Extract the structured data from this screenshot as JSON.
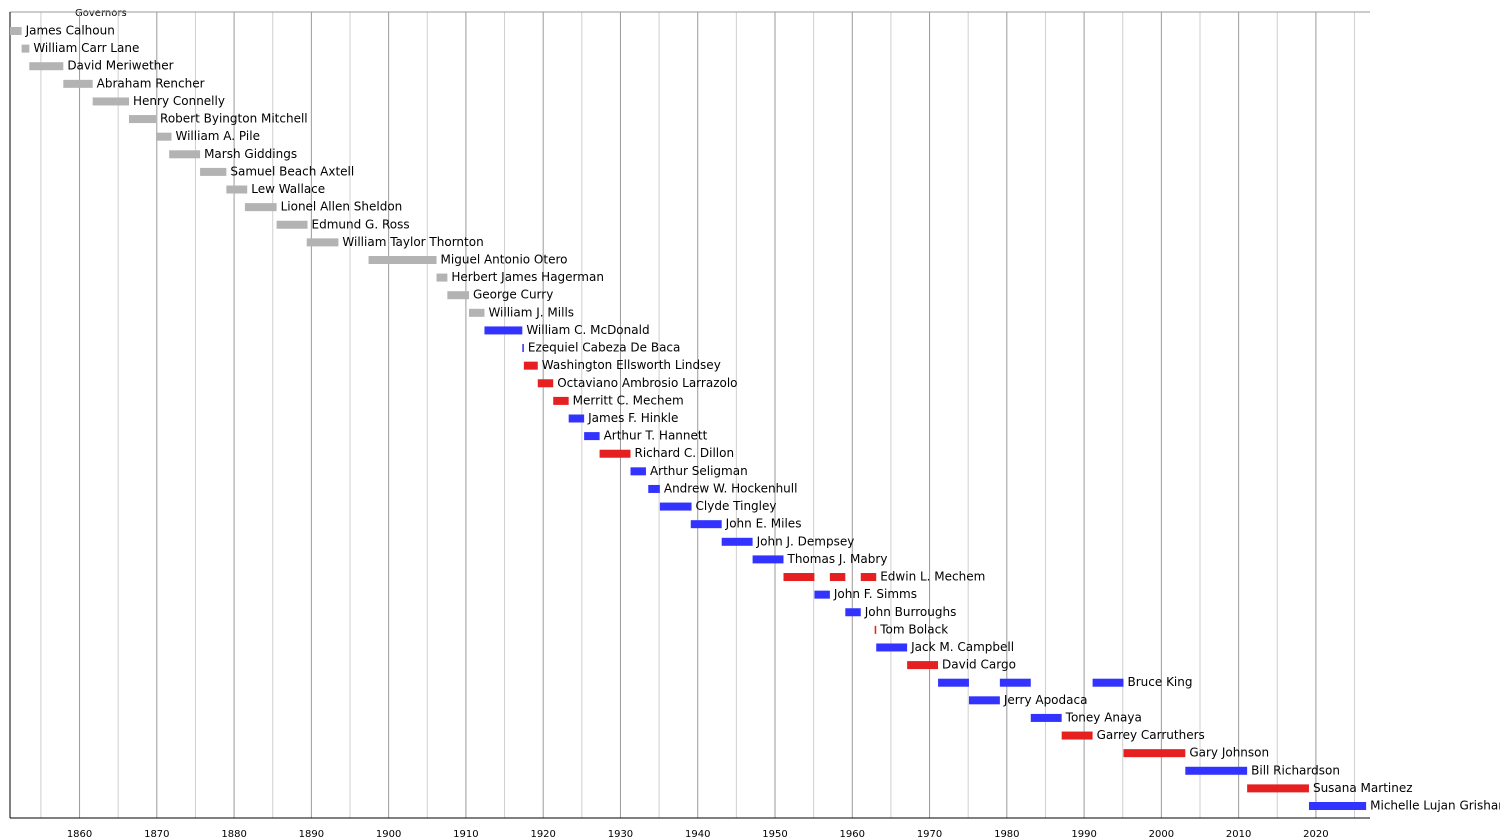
{
  "chart_data": {
    "type": "timeline",
    "title": "Governors",
    "xlim": [
      1851,
      2027
    ],
    "xticks": [
      1860,
      1870,
      1880,
      1890,
      1900,
      1910,
      1920,
      1930,
      1940,
      1950,
      1960,
      1970,
      1980,
      1990,
      2000,
      2010,
      2020
    ],
    "minor_xticks": [
      1855,
      1865,
      1875,
      1885,
      1895,
      1905,
      1915,
      1925,
      1935,
      1945,
      1955,
      1965,
      1975,
      1985,
      1995,
      2005,
      2015,
      2025
    ],
    "grid": true,
    "rows": [
      {
        "name": "James Calhoun",
        "color": "#b3b3b3",
        "terms": [
          [
            1851,
            1852.5
          ]
        ]
      },
      {
        "name": "William Carr Lane",
        "color": "#b3b3b3",
        "terms": [
          [
            1852.5,
            1853.5
          ]
        ]
      },
      {
        "name": "David Meriwether",
        "color": "#b3b3b3",
        "terms": [
          [
            1853.5,
            1857.9
          ]
        ]
      },
      {
        "name": "Abraham Rencher",
        "color": "#b3b3b3",
        "terms": [
          [
            1857.9,
            1861.7
          ]
        ]
      },
      {
        "name": "Henry Connelly",
        "color": "#b3b3b3",
        "terms": [
          [
            1861.7,
            1866.4
          ]
        ]
      },
      {
        "name": "Robert Byington Mitchell",
        "color": "#b3b3b3",
        "terms": [
          [
            1866.4,
            1869.9
          ]
        ]
      },
      {
        "name": "William A. Pile",
        "color": "#b3b3b3",
        "terms": [
          [
            1869.9,
            1871.9
          ]
        ]
      },
      {
        "name": "Marsh Giddings",
        "color": "#b3b3b3",
        "terms": [
          [
            1871.6,
            1875.6
          ]
        ]
      },
      {
        "name": "Samuel Beach Axtell",
        "color": "#b3b3b3",
        "terms": [
          [
            1875.6,
            1879
          ]
        ]
      },
      {
        "name": "Lew Wallace",
        "color": "#b3b3b3",
        "terms": [
          [
            1879,
            1881.7
          ]
        ]
      },
      {
        "name": "Lionel Allen Sheldon",
        "color": "#b3b3b3",
        "terms": [
          [
            1881.4,
            1885.5
          ]
        ]
      },
      {
        "name": "Edmund G. Ross",
        "color": "#b3b3b3",
        "terms": [
          [
            1885.5,
            1889.5
          ]
        ]
      },
      {
        "name": "William Taylor Thornton",
        "color": "#b3b3b3",
        "terms": [
          [
            1889.4,
            1893.5
          ]
        ]
      },
      {
        "name": "Miguel Antonio Otero",
        "color": "#b3b3b3",
        "terms": [
          [
            1897.4,
            1906.2
          ]
        ]
      },
      {
        "name": "Herbert James Hagerman",
        "color": "#b3b3b3",
        "terms": [
          [
            1906.2,
            1907.6
          ]
        ]
      },
      {
        "name": "George Curry",
        "color": "#b3b3b3",
        "terms": [
          [
            1907.6,
            1910.4
          ]
        ]
      },
      {
        "name": "William J. Mills",
        "color": "#b3b3b3",
        "terms": [
          [
            1910.4,
            1912.4
          ]
        ]
      },
      {
        "name": "William C. McDonald",
        "color": "#3333ff",
        "terms": [
          [
            1912.4,
            1917.3
          ]
        ]
      },
      {
        "name": "Ezequiel Cabeza De Baca",
        "color": "#3333ff",
        "terms": [
          [
            1917.3,
            1917.5
          ]
        ]
      },
      {
        "name": "Washington Ellsworth Lindsey",
        "color": "#e62020",
        "terms": [
          [
            1917.5,
            1919.3
          ]
        ]
      },
      {
        "name": "Octaviano Ambrosio Larrazolo",
        "color": "#e62020",
        "terms": [
          [
            1919.3,
            1921.3
          ]
        ]
      },
      {
        "name": "Merritt C. Mechem",
        "color": "#e62020",
        "terms": [
          [
            1921.3,
            1923.3
          ]
        ]
      },
      {
        "name": "James F. Hinkle",
        "color": "#3333ff",
        "terms": [
          [
            1923.3,
            1925.3
          ]
        ]
      },
      {
        "name": "Arthur T. Hannett",
        "color": "#3333ff",
        "terms": [
          [
            1925.3,
            1927.3
          ]
        ]
      },
      {
        "name": "Richard C. Dillon",
        "color": "#e62020",
        "terms": [
          [
            1927.3,
            1931.3
          ]
        ]
      },
      {
        "name": "Arthur Seligman",
        "color": "#3333ff",
        "terms": [
          [
            1931.3,
            1933.3
          ]
        ]
      },
      {
        "name": "Andrew W. Hockenhull",
        "color": "#3333ff",
        "terms": [
          [
            1933.6,
            1935.1
          ]
        ]
      },
      {
        "name": "Clyde Tingley",
        "color": "#3333ff",
        "terms": [
          [
            1935.1,
            1939.2
          ]
        ]
      },
      {
        "name": "John E. Miles",
        "color": "#3333ff",
        "terms": [
          [
            1939.1,
            1943.1
          ]
        ]
      },
      {
        "name": "John J. Dempsey",
        "color": "#3333ff",
        "terms": [
          [
            1943.1,
            1947.1
          ]
        ]
      },
      {
        "name": "Thomas J. Mabry",
        "color": "#3333ff",
        "terms": [
          [
            1947.1,
            1951.1
          ]
        ]
      },
      {
        "name": "Edwin L. Mechem",
        "color": "#e62020",
        "terms": [
          [
            1951.1,
            1955.1
          ],
          [
            1957.1,
            1959.1
          ],
          [
            1961.1,
            1963.1
          ]
        ]
      },
      {
        "name": "John F. Simms",
        "color": "#3333ff",
        "terms": [
          [
            1955.1,
            1957.1
          ]
        ]
      },
      {
        "name": "John Burroughs",
        "color": "#3333ff",
        "terms": [
          [
            1959.1,
            1961.1
          ]
        ]
      },
      {
        "name": "Tom Bolack",
        "color": "#e62020",
        "terms": [
          [
            1962.9,
            1963.1
          ]
        ]
      },
      {
        "name": "Jack M. Campbell",
        "color": "#3333ff",
        "terms": [
          [
            1963.1,
            1967.1
          ]
        ]
      },
      {
        "name": "David Cargo",
        "color": "#e62020",
        "terms": [
          [
            1967.1,
            1971.1
          ]
        ]
      },
      {
        "name": "Bruce King",
        "color": "#3333ff",
        "terms": [
          [
            1971.1,
            1975.1
          ],
          [
            1979.1,
            1983.1
          ],
          [
            1991.1,
            1995.1
          ]
        ]
      },
      {
        "name": "Jerry Apodaca",
        "color": "#3333ff",
        "terms": [
          [
            1975.1,
            1979.1
          ]
        ]
      },
      {
        "name": "Toney Anaya",
        "color": "#3333ff",
        "terms": [
          [
            1983.1,
            1987.1
          ]
        ]
      },
      {
        "name": "Garrey Carruthers",
        "color": "#e62020",
        "terms": [
          [
            1987.1,
            1991.1
          ]
        ]
      },
      {
        "name": "Gary Johnson",
        "color": "#e62020",
        "terms": [
          [
            1995.1,
            2003.1
          ]
        ]
      },
      {
        "name": "Bill Richardson",
        "color": "#3333ff",
        "terms": [
          [
            2003.1,
            2011.1
          ]
        ]
      },
      {
        "name": "Susana Martinez",
        "color": "#e62020",
        "terms": [
          [
            2011.1,
            2019.1
          ]
        ]
      },
      {
        "name": "Michelle Lujan Grisham",
        "color": "#3333ff",
        "terms": [
          [
            2019.1,
            2026.5
          ]
        ]
      }
    ]
  }
}
